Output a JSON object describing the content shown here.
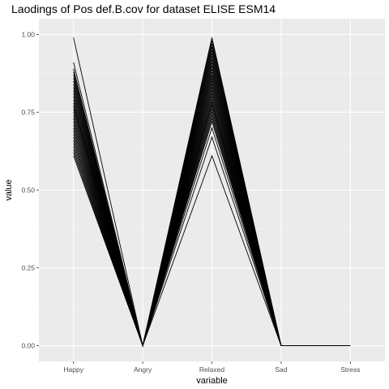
{
  "chart_data": {
    "type": "line",
    "title": "Laodings of Pos def.B.cov for dataset ELISE ESM14",
    "xlabel": "variable",
    "ylabel": "value",
    "categories": [
      "Happy",
      "Angry",
      "Relaxed",
      "Sad",
      "Stress"
    ],
    "ylim": [
      0,
      1
    ],
    "yticks": [
      "0.00",
      "0.25",
      "0.50",
      "0.75",
      "1.00"
    ],
    "ytick_values": [
      0,
      0.25,
      0.5,
      0.75,
      1.0
    ],
    "grid": true,
    "legend": "none",
    "background": "#ebebeb",
    "line_color": "#000000",
    "series": [
      {
        "values": [
          0.99,
          0.0,
          0.97,
          0.0,
          0.0
        ]
      },
      {
        "values": [
          0.91,
          0.0,
          0.98,
          0.0,
          0.0
        ]
      },
      {
        "values": [
          0.89,
          0.0,
          0.96,
          0.0,
          0.0
        ]
      },
      {
        "values": [
          0.87,
          0.0,
          0.95,
          0.0,
          0.0
        ]
      },
      {
        "values": [
          0.86,
          0.0,
          0.93,
          0.0,
          0.0
        ]
      },
      {
        "values": [
          0.84,
          0.0,
          0.92,
          0.0,
          0.0
        ]
      },
      {
        "values": [
          0.83,
          0.0,
          0.91,
          0.0,
          0.0
        ]
      },
      {
        "values": [
          0.82,
          0.0,
          0.9,
          0.0,
          0.0
        ]
      },
      {
        "values": [
          0.81,
          0.0,
          0.89,
          0.0,
          0.0
        ]
      },
      {
        "values": [
          0.8,
          0.0,
          0.88,
          0.0,
          0.0
        ]
      },
      {
        "values": [
          0.79,
          0.0,
          0.87,
          0.0,
          0.0
        ]
      },
      {
        "values": [
          0.78,
          0.0,
          0.86,
          0.0,
          0.0
        ]
      },
      {
        "values": [
          0.77,
          0.0,
          0.85,
          0.0,
          0.0
        ]
      },
      {
        "values": [
          0.76,
          0.0,
          0.84,
          0.0,
          0.0
        ]
      },
      {
        "values": [
          0.75,
          0.0,
          0.83,
          0.0,
          0.0
        ]
      },
      {
        "values": [
          0.74,
          0.0,
          0.82,
          0.0,
          0.0
        ]
      },
      {
        "values": [
          0.73,
          0.0,
          0.81,
          0.0,
          0.0
        ]
      },
      {
        "values": [
          0.72,
          0.0,
          0.8,
          0.0,
          0.0
        ]
      },
      {
        "values": [
          0.71,
          0.0,
          0.79,
          0.0,
          0.0
        ]
      },
      {
        "values": [
          0.7,
          0.0,
          0.78,
          0.0,
          0.0
        ]
      },
      {
        "values": [
          0.69,
          0.0,
          0.77,
          0.0,
          0.0
        ]
      },
      {
        "values": [
          0.68,
          0.0,
          0.76,
          0.0,
          0.0
        ]
      },
      {
        "values": [
          0.67,
          0.0,
          0.75,
          0.0,
          0.0
        ]
      },
      {
        "values": [
          0.66,
          0.0,
          0.74,
          0.0,
          0.0
        ]
      },
      {
        "values": [
          0.65,
          0.0,
          0.73,
          0.0,
          0.0
        ]
      },
      {
        "values": [
          0.64,
          0.0,
          0.72,
          0.0,
          0.0
        ]
      },
      {
        "values": [
          0.63,
          0.0,
          0.78,
          0.0,
          0.0
        ]
      },
      {
        "values": [
          0.62,
          0.0,
          0.67,
          0.0,
          0.0
        ]
      },
      {
        "values": [
          0.61,
          0.0,
          0.61,
          0.0,
          0.0
        ]
      },
      {
        "values": [
          0.77,
          0.0,
          0.7,
          0.0,
          0.0
        ]
      },
      {
        "values": [
          0.88,
          0.0,
          0.94,
          0.0,
          0.0
        ]
      },
      {
        "values": [
          0.85,
          0.0,
          0.99,
          0.0,
          0.0
        ]
      }
    ]
  }
}
